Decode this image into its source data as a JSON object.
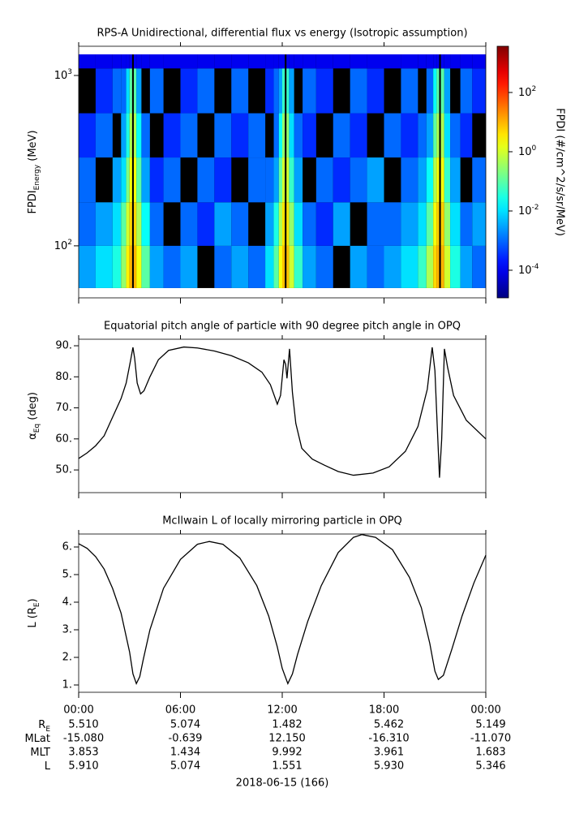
{
  "chart_data": [
    {
      "type": "heatmap",
      "title": "RPS-A Unidirectional, differential flux vs energy (Isotropic assumption)",
      "ylabel": [
        "FPDI",
        "Energy",
        " (MeV)"
      ],
      "xlim": [
        0,
        24
      ],
      "xticks": [
        0,
        6,
        12,
        18,
        24
      ],
      "ylim": [
        49.5,
        1484
      ],
      "ylog": true,
      "yticks": [
        {
          "value": 100,
          "label": "10^2"
        },
        {
          "value": 1000,
          "label": "10^3"
        }
      ],
      "x_edges": [
        0,
        1,
        2,
        2.5,
        2.8,
        3.0,
        3.15,
        3.25,
        3.4,
        3.7,
        4.2,
        5,
        6,
        7,
        8,
        9,
        10,
        11,
        11.5,
        11.8,
        12.0,
        12.15,
        12.25,
        12.4,
        12.7,
        13.2,
        14,
        15,
        16,
        17,
        18,
        19,
        20,
        20.5,
        20.9,
        21.1,
        21.25,
        21.35,
        21.55,
        21.9,
        22.5,
        23.2,
        24
      ],
      "y_edges": [
        56.5,
        100,
        180,
        330,
        600,
        1100,
        1330
      ],
      "z": [
        [
          0.003,
          0.01,
          0.03,
          0.3,
          3,
          10,
          null,
          10,
          2,
          0.1,
          0.003,
          0.001,
          0.003,
          null,
          0.001,
          0.003,
          0.001,
          0.01,
          0.1,
          2,
          8,
          null,
          8,
          1,
          0.05,
          0.003,
          0.001,
          null,
          0.003,
          0.001,
          0.003,
          0.01,
          0.05,
          0.5,
          5,
          10,
          null,
          10,
          1,
          0.03,
          0.003,
          0.001
        ],
        [
          0.001,
          0.003,
          0.01,
          0.1,
          1,
          5,
          null,
          5,
          0.5,
          0.02,
          0.001,
          null,
          0.001,
          0.0003,
          0.003,
          0.001,
          null,
          0.003,
          0.03,
          0.5,
          4,
          null,
          4,
          0.3,
          0.01,
          0.001,
          0.0003,
          0.003,
          null,
          0.001,
          0.001,
          0.003,
          0.01,
          0.1,
          2,
          6,
          null,
          6,
          0.3,
          0.01,
          0.001,
          0.003
        ],
        [
          0.001,
          null,
          0.003,
          0.01,
          0.2,
          2,
          null,
          2,
          0.1,
          0.003,
          0.0003,
          0.001,
          null,
          0.001,
          0.0003,
          null,
          0.001,
          0.001,
          0.003,
          0.1,
          1,
          null,
          1,
          0.05,
          0.003,
          null,
          0.001,
          0.0003,
          0.001,
          0.003,
          null,
          0.001,
          0.003,
          0.02,
          0.5,
          2,
          null,
          2,
          0.05,
          0.003,
          null,
          0.001
        ],
        [
          0.0003,
          0.001,
          null,
          0.003,
          0.03,
          0.5,
          null,
          0.5,
          0.02,
          0.001,
          null,
          0.0003,
          0.001,
          null,
          0.001,
          0.0003,
          0.001,
          null,
          0.001,
          0.02,
          0.3,
          null,
          0.3,
          0.01,
          0.001,
          0.0003,
          null,
          0.001,
          0.0003,
          null,
          0.001,
          0.0003,
          0.001,
          0.003,
          0.1,
          0.5,
          null,
          0.5,
          0.01,
          0.001,
          0.0003,
          null
        ],
        [
          null,
          0.0003,
          0.001,
          0.001,
          0.01,
          0.1,
          null,
          0.1,
          0.003,
          null,
          0.001,
          null,
          0.0003,
          0.001,
          null,
          0.001,
          null,
          0.0003,
          0.001,
          0.003,
          0.05,
          null,
          0.05,
          0.003,
          null,
          0.001,
          0.0003,
          null,
          0.001,
          0.0003,
          null,
          0.001,
          null,
          0.001,
          0.02,
          0.1,
          null,
          0.1,
          0.003,
          null,
          0.001,
          0.0003
        ],
        [
          0.0001,
          0.0001,
          0.0001,
          0.0001,
          0.0001,
          0.0001,
          null,
          0.0001,
          0.0001,
          0.0001,
          0.0001,
          0.0001,
          0.0001,
          0.0001,
          0.0001,
          0.0001,
          0.0001,
          0.0001,
          0.0001,
          0.0001,
          0.0001,
          null,
          0.0001,
          0.0001,
          0.0001,
          0.0001,
          0.0001,
          0.0001,
          0.0001,
          0.0001,
          0.0001,
          0.0001,
          0.0001,
          0.0001,
          0.0001,
          0.0001,
          null,
          0.0001,
          0.0001,
          0.0001,
          0.0001,
          0.0001
        ]
      ],
      "colorbar": {
        "label": "FPDI (#/cm^2/s/sr/MeV)",
        "zlim": [
          1.17e-05,
          3630
        ],
        "zlog": true,
        "colormap": "jet",
        "zticks": [
          {
            "value": 0.0001,
            "label": "10^-4"
          },
          {
            "value": 0.01,
            "label": "10^-2"
          },
          {
            "value": 1,
            "label": "10^0"
          },
          {
            "value": 100,
            "label": "10^2"
          }
        ]
      }
    },
    {
      "type": "line",
      "title": "Equatorial pitch angle of particle with 90 degree pitch angle in OPQ",
      "ylabel": [
        "α",
        "Eq",
        " (deg)"
      ],
      "color": "#000000",
      "xlim": [
        0,
        24
      ],
      "xticks": [
        0,
        6,
        12,
        18,
        24
      ],
      "ylim": [
        42.7,
        92.1
      ],
      "yticks": [
        {
          "value": 50,
          "label": "50."
        },
        {
          "value": 60,
          "label": "60."
        },
        {
          "value": 70,
          "label": "70."
        },
        {
          "value": 80,
          "label": "80."
        },
        {
          "value": 90,
          "label": "90."
        }
      ],
      "x": [
        0,
        0.5,
        1,
        1.5,
        2,
        2.5,
        2.8,
        3.05,
        3.2,
        3.3,
        3.45,
        3.65,
        3.85,
        4.2,
        4.7,
        5.3,
        6.2,
        7,
        8,
        9,
        10,
        10.8,
        11.3,
        11.71,
        11.9,
        12.1,
        12.2,
        12.28,
        12.43,
        12.6,
        12.8,
        13.15,
        13.77,
        14.5,
        15.3,
        16.2,
        17.35,
        18.3,
        19.26,
        20,
        20.55,
        20.84,
        21,
        21.13,
        21.27,
        21.4,
        21.56,
        21.75,
        22.1,
        22.85,
        24
      ],
      "values": [
        53.7,
        55.5,
        57.8,
        61,
        67,
        73,
        78,
        85,
        89.5,
        86,
        78,
        74.5,
        75.5,
        80,
        85.5,
        88.5,
        89.6,
        89.3,
        88.3,
        86.8,
        84.5,
        81.5,
        77.5,
        71.2,
        74,
        85.5,
        84,
        79.5,
        89,
        75,
        65,
        57,
        53.5,
        51.5,
        49.5,
        48.3,
        49,
        51,
        56,
        64,
        76,
        89.5,
        82,
        65,
        47.5,
        60,
        89,
        83,
        74,
        66,
        60
      ]
    },
    {
      "type": "line",
      "title": "McIlwain L of locally mirroring particle in OPQ",
      "ylabel": [
        "L (R",
        "E",
        ")"
      ],
      "color": "#000000",
      "xlim": [
        0,
        24
      ],
      "xticks": [
        {
          "value": 0,
          "label": "00:00"
        },
        {
          "value": 6,
          "label": "06:00"
        },
        {
          "value": 12,
          "label": "12:00"
        },
        {
          "value": 18,
          "label": "18:00"
        },
        {
          "value": 24,
          "label": "00:00"
        }
      ],
      "ylim": [
        0.735,
        6.47
      ],
      "yticks": [
        {
          "value": 1,
          "label": "1."
        },
        {
          "value": 2,
          "label": "2."
        },
        {
          "value": 3,
          "label": "3."
        },
        {
          "value": 4,
          "label": "4."
        },
        {
          "value": 5,
          "label": "5."
        },
        {
          "value": 6,
          "label": "6."
        }
      ],
      "x": [
        0,
        0.5,
        1,
        1.5,
        2,
        2.5,
        3,
        3.2,
        3.4,
        3.6,
        3.8,
        4.2,
        5,
        6,
        7,
        7.7,
        8.5,
        9.5,
        10.5,
        11.2,
        11.7,
        12.0,
        12.33,
        12.6,
        12.9,
        13.5,
        14.3,
        15.3,
        16.2,
        16.7,
        17.5,
        18.5,
        19.5,
        20.2,
        20.7,
        21,
        21.2,
        21.5,
        22,
        22.6,
        23.3,
        24
      ],
      "values": [
        6.12,
        5.95,
        5.65,
        5.2,
        4.5,
        3.6,
        2.2,
        1.4,
        1.05,
        1.3,
        1.9,
        3.0,
        4.5,
        5.55,
        6.1,
        6.2,
        6.1,
        5.6,
        4.6,
        3.5,
        2.4,
        1.6,
        1.05,
        1.4,
        2.1,
        3.3,
        4.6,
        5.8,
        6.35,
        6.45,
        6.35,
        5.9,
        4.9,
        3.8,
        2.5,
        1.5,
        1.2,
        1.35,
        2.3,
        3.5,
        4.7,
        5.7
      ]
    }
  ],
  "ephemeris": {
    "rows": [
      {
        "label": [
          "R",
          "E"
        ],
        "values": [
          "5.510",
          "5.074",
          "1.482",
          "5.462",
          "5.149"
        ]
      },
      {
        "label": [
          "MLat"
        ],
        "values": [
          "-15.080",
          "-0.639",
          "12.150",
          "-16.310",
          "-11.070"
        ]
      },
      {
        "label": [
          "MLT"
        ],
        "values": [
          "3.853",
          "1.434",
          "9.992",
          "3.961",
          "1.683"
        ]
      },
      {
        "label": [
          "L"
        ],
        "values": [
          "5.910",
          "5.074",
          "1.551",
          "5.930",
          "5.346"
        ]
      }
    ],
    "date": "2018-06-15 (166)"
  }
}
